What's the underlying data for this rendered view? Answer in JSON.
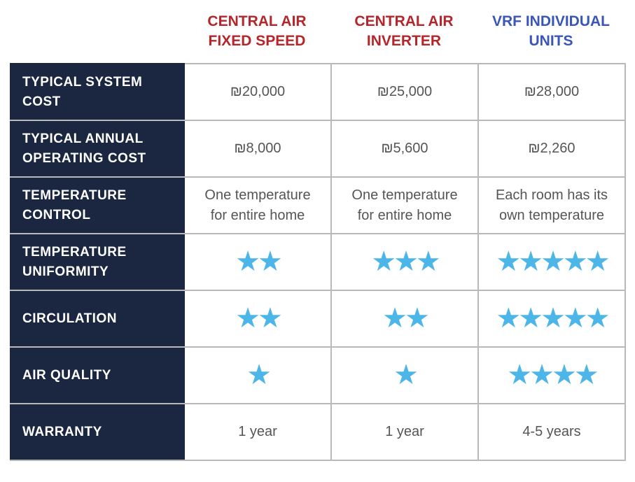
{
  "colors": {
    "header_fixed": "#b5262b",
    "header_inverter": "#b5262b",
    "header_vrf": "#3a56b8",
    "label_bg": "#1b2640",
    "star": "#4db6e8",
    "border": "#b9b9b9"
  },
  "columns": [
    {
      "label": "CENTRAL AIR\nFIXED SPEED"
    },
    {
      "label": "CENTRAL AIR\nINVERTER"
    },
    {
      "label": "VRF INDIVIDUAL\nUNITS"
    }
  ],
  "rows": [
    {
      "label": "TYPICAL SYSTEM\nCOST",
      "cells": [
        "₪20,000",
        "₪25,000",
        "₪28,000"
      ]
    },
    {
      "label": "TYPICAL ANNUAL\nOPERATING COST",
      "cells": [
        "₪8,000",
        "₪5,600",
        "₪2,260"
      ]
    },
    {
      "label": "TEMPERATURE\nCONTROL",
      "cells": [
        "One temperature\nfor entire home",
        "One temperature\nfor entire home",
        "Each room has its\nown temperature"
      ]
    },
    {
      "label": "TEMPERATURE\nUNIFORMITY",
      "stars": [
        2,
        3,
        5
      ]
    },
    {
      "label": "CIRCULATION",
      "stars": [
        2,
        2,
        5
      ]
    },
    {
      "label": "AIR QUALITY",
      "stars": [
        1,
        1,
        4
      ]
    },
    {
      "label": "WARRANTY",
      "cells": [
        "1 year",
        "1 year",
        "4-5 years"
      ]
    }
  ]
}
